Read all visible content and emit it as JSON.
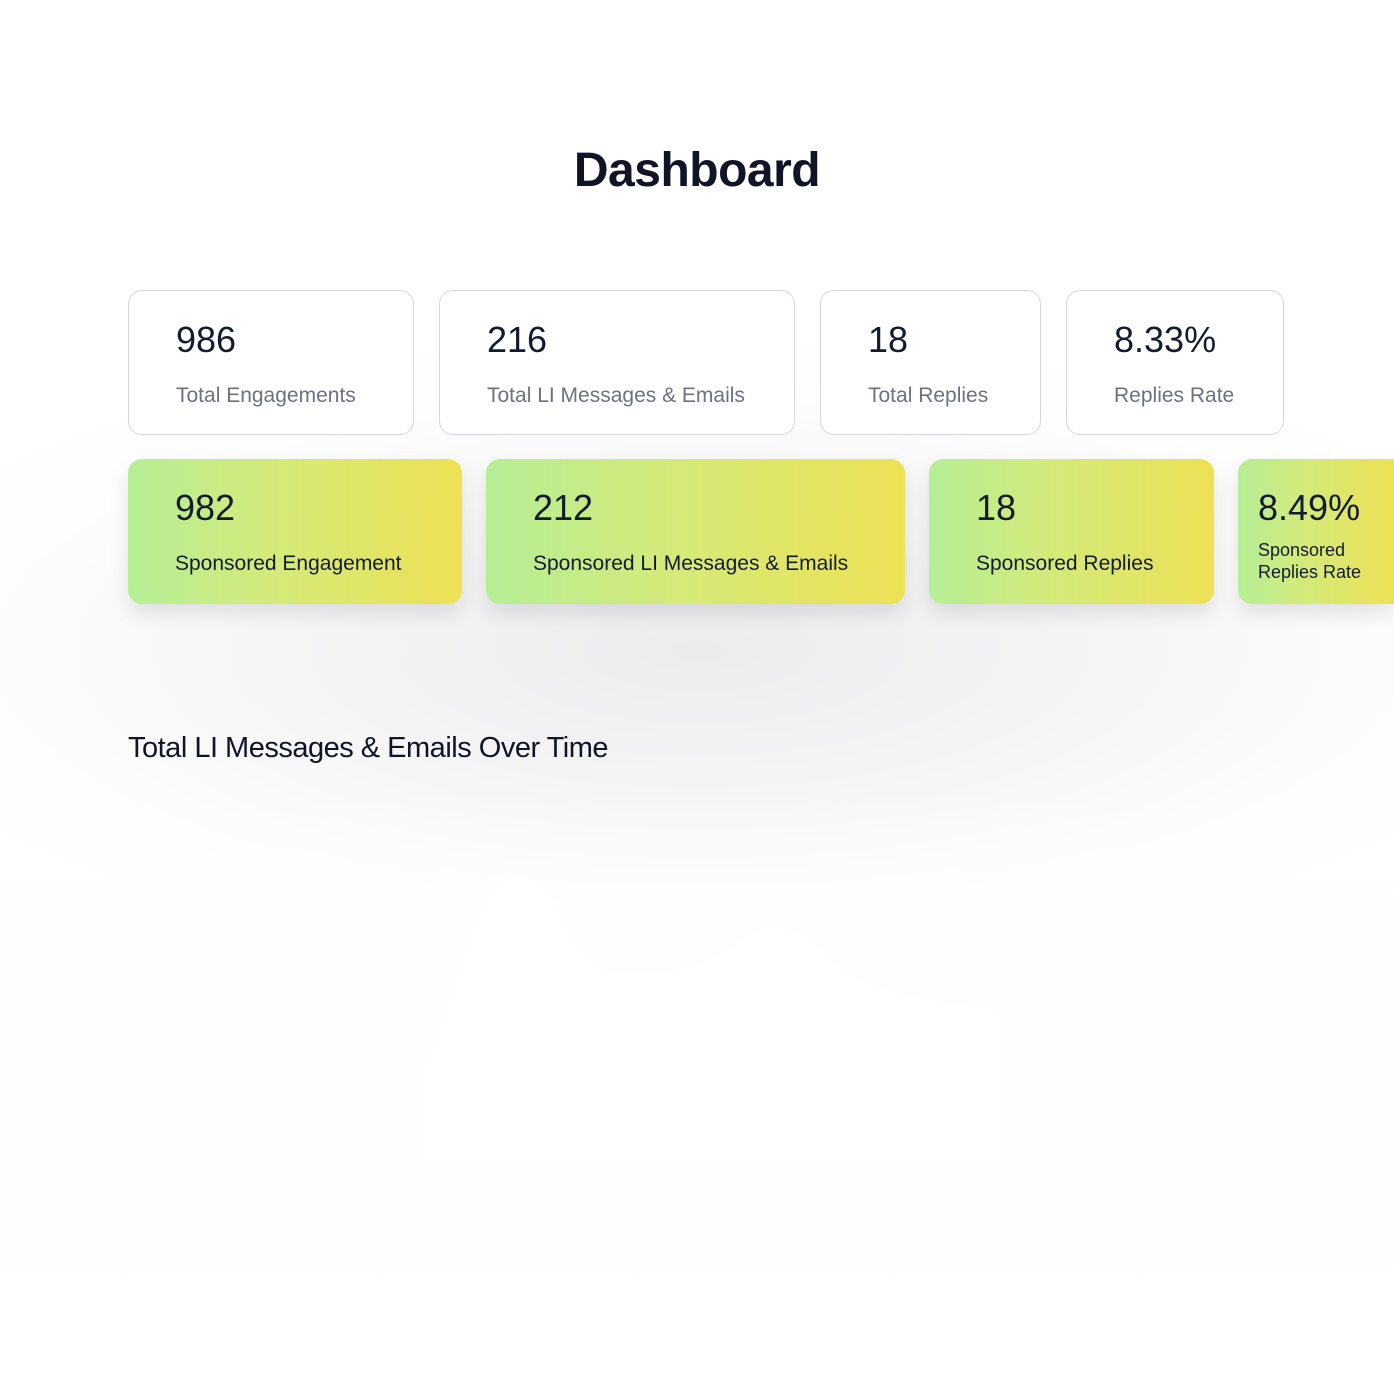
{
  "header": {
    "title": "Dashboard"
  },
  "total_stats": [
    {
      "value": "986",
      "label": "Total Engagements"
    },
    {
      "value": "216",
      "label": "Total LI Messages & Emails"
    },
    {
      "value": "18",
      "label": "Total Replies"
    },
    {
      "value": "8.33%",
      "label": "Replies Rate"
    }
  ],
  "sponsored_stats": [
    {
      "value": "982",
      "label": "Sponsored Engagement"
    },
    {
      "value": "212",
      "label": "Sponsored  LI Messages & Emails"
    },
    {
      "value": "18",
      "label": "Sponsored  Replies"
    },
    {
      "value": "8.49%",
      "label": "Sponsored Replies Rate"
    }
  ],
  "chart_section": {
    "title": "Total LI Messages & Emails Over Time"
  },
  "colors": {
    "gradient_start": "#b6ee96",
    "gradient_end": "#ede154",
    "text": "#111427"
  }
}
